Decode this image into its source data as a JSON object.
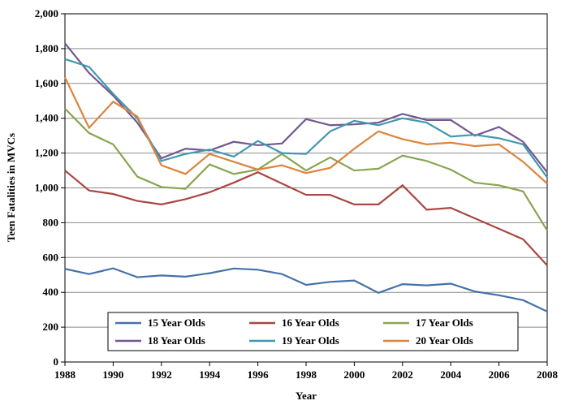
{
  "chart_data": {
    "type": "line",
    "x_label": "Year",
    "y_label": "Teen Fatalities in MVCs",
    "x": [
      1988,
      1989,
      1990,
      1991,
      1992,
      1993,
      1994,
      1995,
      1996,
      1997,
      1998,
      1999,
      2000,
      2001,
      2002,
      2003,
      2004,
      2005,
      2006,
      2007,
      2008
    ],
    "xlim": [
      1988,
      2008
    ],
    "xticks": [
      1988,
      1990,
      1992,
      1994,
      1996,
      1998,
      2000,
      2002,
      2004,
      2006,
      2008
    ],
    "ylim": [
      0,
      2000
    ],
    "yticks": [
      0,
      200,
      400,
      600,
      800,
      {
        "value": 1000,
        "label": "1,000"
      },
      {
        "value": 1200,
        "label": "1,200"
      },
      {
        "value": 1400,
        "label": "1,400"
      },
      {
        "value": 1600,
        "label": "1,600"
      },
      {
        "value": 1800,
        "label": "1,800"
      },
      {
        "value": 2000,
        "label": "2,000"
      }
    ],
    "grid": true,
    "series": [
      {
        "name": "15 Year Olds",
        "color": "#4572a7",
        "values": [
          535,
          505,
          538,
          487,
          497,
          490,
          510,
          537,
          530,
          505,
          443,
          460,
          468,
          397,
          447,
          440,
          450,
          405,
          383,
          355,
          290
        ]
      },
      {
        "name": "16 Year Olds",
        "color": "#aa4643",
        "values": [
          1100,
          985,
          965,
          925,
          905,
          935,
          975,
          1030,
          1090,
          1025,
          960,
          960,
          905,
          905,
          1015,
          875,
          885,
          825,
          765,
          705,
          555
        ]
      },
      {
        "name": "17 Year Olds",
        "color": "#89a54e",
        "values": [
          1455,
          1315,
          1250,
          1065,
          1005,
          995,
          1135,
          1080,
          1105,
          1195,
          1100,
          1175,
          1100,
          1110,
          1185,
          1155,
          1105,
          1030,
          1015,
          980,
          755
        ]
      },
      {
        "name": "18 Year Olds",
        "color": "#71588f",
        "values": [
          1830,
          1660,
          1530,
          1375,
          1170,
          1225,
          1215,
          1265,
          1245,
          1255,
          1395,
          1360,
          1365,
          1375,
          1425,
          1390,
          1390,
          1300,
          1350,
          1265,
          1090
        ]
      },
      {
        "name": "19 Year Olds",
        "color": "#4198af",
        "values": [
          1740,
          1695,
          1540,
          1400,
          1155,
          1195,
          1220,
          1180,
          1270,
          1200,
          1195,
          1325,
          1385,
          1360,
          1400,
          1375,
          1295,
          1305,
          1285,
          1250,
          1060
        ]
      },
      {
        "name": "20 Year Olds",
        "color": "#db843d",
        "values": [
          1635,
          1345,
          1495,
          1410,
          1130,
          1080,
          1195,
          1150,
          1105,
          1130,
          1085,
          1115,
          1225,
          1325,
          1280,
          1250,
          1260,
          1240,
          1250,
          1150,
          1025
        ]
      }
    ]
  }
}
